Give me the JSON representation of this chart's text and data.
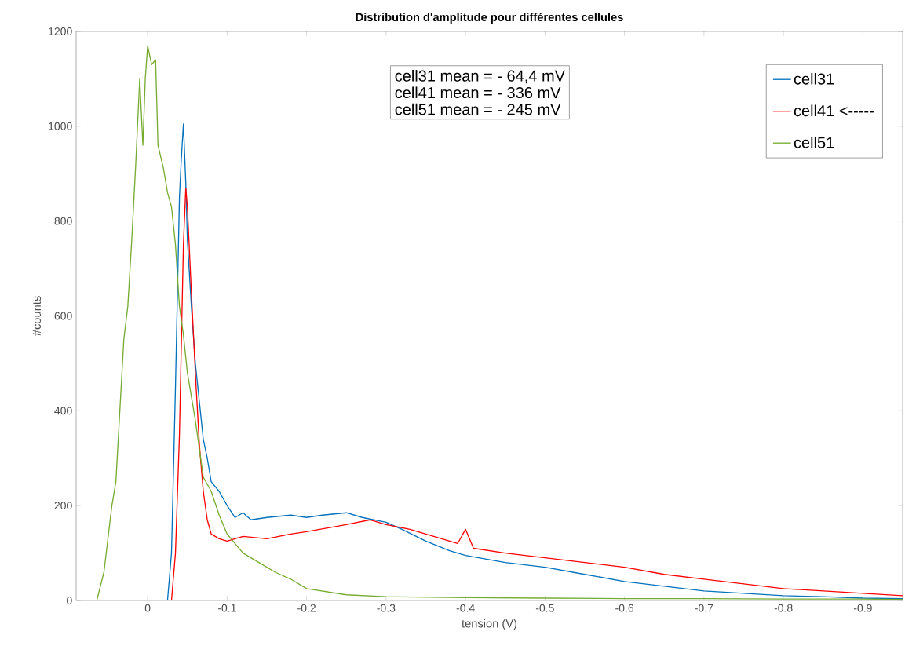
{
  "chart_data": {
    "type": "line",
    "title": "Distribution d'amplitude pour différentes cellules",
    "xlabel": "tension (V)",
    "ylabel": "#counts",
    "xlim": [
      0.09,
      -0.95
    ],
    "ylim": [
      0,
      1200
    ],
    "xticks": [
      0,
      -0.1,
      -0.2,
      -0.3,
      -0.4,
      -0.5,
      -0.6,
      -0.7,
      -0.8,
      -0.9
    ],
    "yticks": [
      0,
      200,
      400,
      600,
      800,
      1000,
      1200
    ],
    "legend": "top right",
    "annotations": [
      "cell31 mean = - 64,4 mV",
      "cell41 mean = - 336 mV",
      "cell51 mean = - 245 mV"
    ],
    "series": [
      {
        "name": "cell31",
        "color": "#0072bd",
        "x": [
          0.09,
          -0.025,
          -0.03,
          -0.035,
          -0.04,
          -0.042,
          -0.045,
          -0.048,
          -0.05,
          -0.055,
          -0.06,
          -0.065,
          -0.07,
          -0.075,
          -0.08,
          -0.09,
          -0.1,
          -0.11,
          -0.12,
          -0.13,
          -0.15,
          -0.18,
          -0.2,
          -0.22,
          -0.25,
          -0.27,
          -0.3,
          -0.32,
          -0.35,
          -0.38,
          -0.4,
          -0.45,
          -0.5,
          -0.55,
          -0.6,
          -0.65,
          -0.7,
          -0.75,
          -0.8,
          -0.85,
          -0.9,
          -0.95
        ],
        "values": [
          0,
          0,
          100,
          450,
          850,
          920,
          1005,
          880,
          760,
          620,
          500,
          420,
          340,
          300,
          250,
          230,
          200,
          175,
          185,
          170,
          175,
          180,
          175,
          180,
          185,
          175,
          165,
          150,
          125,
          105,
          95,
          80,
          70,
          55,
          40,
          30,
          20,
          15,
          10,
          8,
          5,
          4
        ]
      },
      {
        "name": "cell41 <-----",
        "color": "#ff0000",
        "x": [
          0.09,
          -0.03,
          -0.035,
          -0.04,
          -0.045,
          -0.048,
          -0.05,
          -0.055,
          -0.06,
          -0.065,
          -0.07,
          -0.075,
          -0.08,
          -0.09,
          -0.1,
          -0.12,
          -0.15,
          -0.18,
          -0.2,
          -0.25,
          -0.28,
          -0.3,
          -0.33,
          -0.36,
          -0.39,
          -0.4,
          -0.41,
          -0.45,
          -0.5,
          -0.55,
          -0.6,
          -0.65,
          -0.7,
          -0.75,
          -0.8,
          -0.85,
          -0.9,
          -0.95
        ],
        "values": [
          0,
          0,
          100,
          350,
          750,
          870,
          830,
          650,
          480,
          330,
          230,
          170,
          140,
          130,
          125,
          135,
          130,
          140,
          145,
          160,
          170,
          160,
          150,
          135,
          120,
          150,
          110,
          100,
          90,
          80,
          70,
          55,
          45,
          35,
          25,
          20,
          15,
          10
        ]
      },
      {
        "name": "cell51",
        "color": "#77ac30",
        "x": [
          0.09,
          0.064,
          0.055,
          0.045,
          0.04,
          0.035,
          0.03,
          0.025,
          0.02,
          0.015,
          0.01,
          0.006,
          0.003,
          0.0,
          -0.005,
          -0.01,
          -0.013,
          -0.02,
          -0.025,
          -0.03,
          -0.035,
          -0.04,
          -0.045,
          -0.05,
          -0.055,
          -0.06,
          -0.065,
          -0.07,
          -0.08,
          -0.09,
          -0.1,
          -0.12,
          -0.14,
          -0.16,
          -0.18,
          -0.2,
          -0.25,
          -0.3,
          -0.4,
          -0.5,
          -0.6,
          -0.7,
          -0.8,
          -0.9,
          -0.95
        ],
        "values": [
          0,
          0,
          60,
          200,
          250,
          400,
          550,
          620,
          760,
          920,
          1100,
          960,
          1100,
          1170,
          1130,
          1140,
          960,
          910,
          860,
          830,
          750,
          620,
          560,
          480,
          430,
          380,
          320,
          260,
          230,
          180,
          140,
          100,
          80,
          60,
          45,
          25,
          12,
          8,
          6,
          5,
          4,
          4,
          3,
          3,
          2
        ]
      }
    ]
  }
}
